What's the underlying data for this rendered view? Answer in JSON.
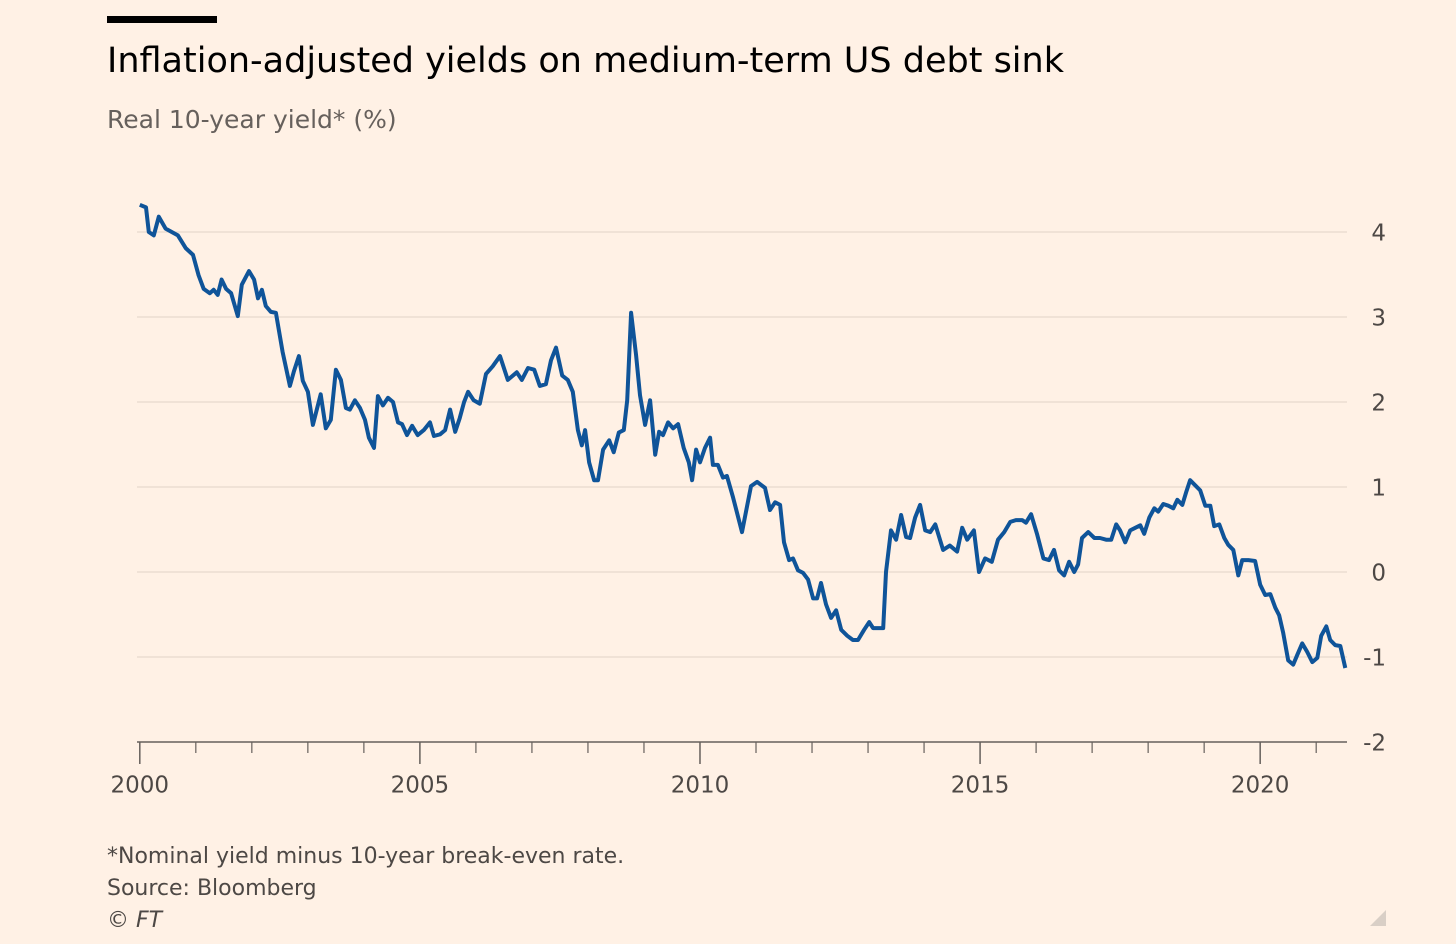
{
  "chart_data": {
    "type": "line",
    "title": "Inflation-adjusted yields on medium-term US debt sink",
    "subtitle": "Real 10-year yield* (%)",
    "footnote": "*Nominal yield minus 10-year break-even rate.",
    "source": "Source: Bloomberg",
    "credit": "© FT",
    "color": "#0f5499",
    "grid": true,
    "xlim": [
      1999.95,
      2021.55
    ],
    "xticks": [
      2000,
      2005,
      2010,
      2015,
      2020
    ],
    "xticks_minor": [
      2001,
      2002,
      2003,
      2004,
      2006,
      2007,
      2008,
      2009,
      2011,
      2012,
      2013,
      2014,
      2016,
      2017,
      2018,
      2019,
      2021
    ],
    "ylim": [
      -2,
      4.5
    ],
    "yticks": [
      -2,
      -1,
      0,
      1,
      2,
      3,
      4
    ],
    "x": [
      2000.0,
      2000.11,
      2000.16,
      2000.25,
      2000.34,
      2000.46,
      2000.68,
      2000.82,
      2000.95,
      2001.05,
      2001.14,
      2001.25,
      2001.32,
      2001.39,
      2001.46,
      2001.54,
      2001.63,
      2001.75,
      2001.82,
      2001.95,
      2002.04,
      2002.11,
      2002.18,
      2002.25,
      2002.34,
      2002.43,
      2002.55,
      2002.68,
      2002.75,
      2002.84,
      2002.91,
      2003.0,
      2003.09,
      2003.23,
      2003.32,
      2003.41,
      2003.5,
      2003.59,
      2003.68,
      2003.75,
      2003.84,
      2003.93,
      2004.02,
      2004.09,
      2004.18,
      2004.25,
      2004.34,
      2004.43,
      2004.52,
      2004.61,
      2004.68,
      2004.77,
      2004.86,
      2004.96,
      2005.07,
      2005.18,
      2005.25,
      2005.36,
      2005.45,
      2005.54,
      2005.63,
      2005.71,
      2005.79,
      2005.86,
      2005.96,
      2006.07,
      2006.18,
      2006.3,
      2006.43,
      2006.57,
      2006.73,
      2006.82,
      2006.93,
      2007.04,
      2007.14,
      2007.25,
      2007.34,
      2007.43,
      2007.54,
      2007.64,
      2007.73,
      2007.82,
      2007.89,
      2007.95,
      2008.02,
      2008.11,
      2008.18,
      2008.27,
      2008.38,
      2008.46,
      2008.55,
      2008.64,
      2008.7,
      2008.77,
      2008.86,
      2008.93,
      2009.02,
      2009.11,
      2009.2,
      2009.27,
      2009.34,
      2009.43,
      2009.52,
      2009.61,
      2009.71,
      2009.8,
      2009.86,
      2009.93,
      2010.0,
      2010.09,
      2010.18,
      2010.23,
      2010.32,
      2010.41,
      2010.48,
      2010.59,
      2010.75,
      2010.91,
      2011.02,
      2011.16,
      2011.25,
      2011.34,
      2011.43,
      2011.5,
      2011.59,
      2011.66,
      2011.75,
      2011.84,
      2011.93,
      2012.02,
      2012.09,
      2012.16,
      2012.25,
      2012.34,
      2012.43,
      2012.52,
      2012.63,
      2012.73,
      2012.82,
      2012.93,
      2013.02,
      2013.09,
      2013.27,
      2013.32,
      2013.41,
      2013.5,
      2013.59,
      2013.68,
      2013.75,
      2013.84,
      2013.93,
      2014.02,
      2014.11,
      2014.2,
      2014.34,
      2014.46,
      2014.59,
      2014.68,
      2014.77,
      2014.89,
      2014.98,
      2015.09,
      2015.21,
      2015.32,
      2015.43,
      2015.54,
      2015.64,
      2015.75,
      2015.82,
      2015.91,
      2016.02,
      2016.13,
      2016.23,
      2016.32,
      2016.41,
      2016.5,
      2016.59,
      2016.68,
      2016.75,
      2016.82,
      2016.93,
      2017.04,
      2017.14,
      2017.25,
      2017.34,
      2017.43,
      2017.5,
      2017.59,
      2017.68,
      2017.77,
      2017.86,
      2017.93,
      2018.02,
      2018.11,
      2018.18,
      2018.27,
      2018.36,
      2018.45,
      2018.52,
      2018.61,
      2018.68,
      2018.75,
      2018.84,
      2018.93,
      2019.02,
      2019.11,
      2019.18,
      2019.27,
      2019.36,
      2019.43,
      2019.52,
      2019.61,
      2019.68,
      2019.79,
      2019.91,
      2020.0,
      2020.09,
      2020.18,
      2020.27,
      2020.34,
      2020.41,
      2020.5,
      2020.59,
      2020.66,
      2020.75,
      2020.84,
      2020.93,
      2021.02,
      2021.09,
      2021.18,
      2021.25,
      2021.34,
      2021.43,
      2021.52
    ],
    "values": [
      4.32,
      4.29,
      4.0,
      3.96,
      4.18,
      4.04,
      3.96,
      3.81,
      3.73,
      3.49,
      3.33,
      3.28,
      3.32,
      3.26,
      3.44,
      3.33,
      3.28,
      3.01,
      3.38,
      3.54,
      3.44,
      3.22,
      3.32,
      3.13,
      3.06,
      3.05,
      2.59,
      2.19,
      2.36,
      2.54,
      2.25,
      2.12,
      1.73,
      2.09,
      1.69,
      1.79,
      2.38,
      2.26,
      1.93,
      1.91,
      2.02,
      1.93,
      1.79,
      1.58,
      1.46,
      2.07,
      1.96,
      2.05,
      2.0,
      1.76,
      1.74,
      1.61,
      1.72,
      1.61,
      1.67,
      1.76,
      1.6,
      1.62,
      1.67,
      1.91,
      1.65,
      1.81,
      2.0,
      2.12,
      2.02,
      1.98,
      2.33,
      2.42,
      2.54,
      2.26,
      2.35,
      2.26,
      2.4,
      2.38,
      2.19,
      2.21,
      2.49,
      2.64,
      2.31,
      2.26,
      2.12,
      1.67,
      1.49,
      1.67,
      1.29,
      1.08,
      1.08,
      1.44,
      1.55,
      1.41,
      1.64,
      1.67,
      2.02,
      3.05,
      2.55,
      2.08,
      1.73,
      2.02,
      1.38,
      1.65,
      1.61,
      1.76,
      1.69,
      1.74,
      1.46,
      1.29,
      1.08,
      1.44,
      1.29,
      1.46,
      1.58,
      1.26,
      1.26,
      1.11,
      1.13,
      0.88,
      0.47,
      1.01,
      1.06,
      0.99,
      0.73,
      0.82,
      0.79,
      0.35,
      0.14,
      0.16,
      0.02,
      -0.01,
      -0.09,
      -0.31,
      -0.31,
      -0.13,
      -0.38,
      -0.54,
      -0.45,
      -0.68,
      -0.75,
      -0.8,
      -0.8,
      -0.68,
      -0.59,
      -0.66,
      -0.66,
      0.0,
      0.49,
      0.38,
      0.67,
      0.41,
      0.4,
      0.64,
      0.79,
      0.49,
      0.47,
      0.56,
      0.26,
      0.31,
      0.24,
      0.52,
      0.38,
      0.49,
      0.0,
      0.16,
      0.12,
      0.38,
      0.47,
      0.59,
      0.61,
      0.61,
      0.58,
      0.68,
      0.44,
      0.16,
      0.14,
      0.26,
      0.02,
      -0.04,
      0.12,
      0.0,
      0.09,
      0.4,
      0.47,
      0.4,
      0.4,
      0.38,
      0.38,
      0.56,
      0.49,
      0.35,
      0.49,
      0.52,
      0.55,
      0.45,
      0.64,
      0.75,
      0.71,
      0.8,
      0.78,
      0.75,
      0.85,
      0.79,
      0.94,
      1.08,
      1.02,
      0.96,
      0.78,
      0.78,
      0.54,
      0.56,
      0.4,
      0.32,
      0.26,
      -0.04,
      0.14,
      0.14,
      0.13,
      -0.15,
      -0.27,
      -0.26,
      -0.42,
      -0.51,
      -0.71,
      -1.04,
      -1.09,
      -0.98,
      -0.84,
      -0.94,
      -1.06,
      -1.01,
      -0.75,
      -0.64,
      -0.8,
      -0.86,
      -0.87,
      -1.13
    ]
  }
}
